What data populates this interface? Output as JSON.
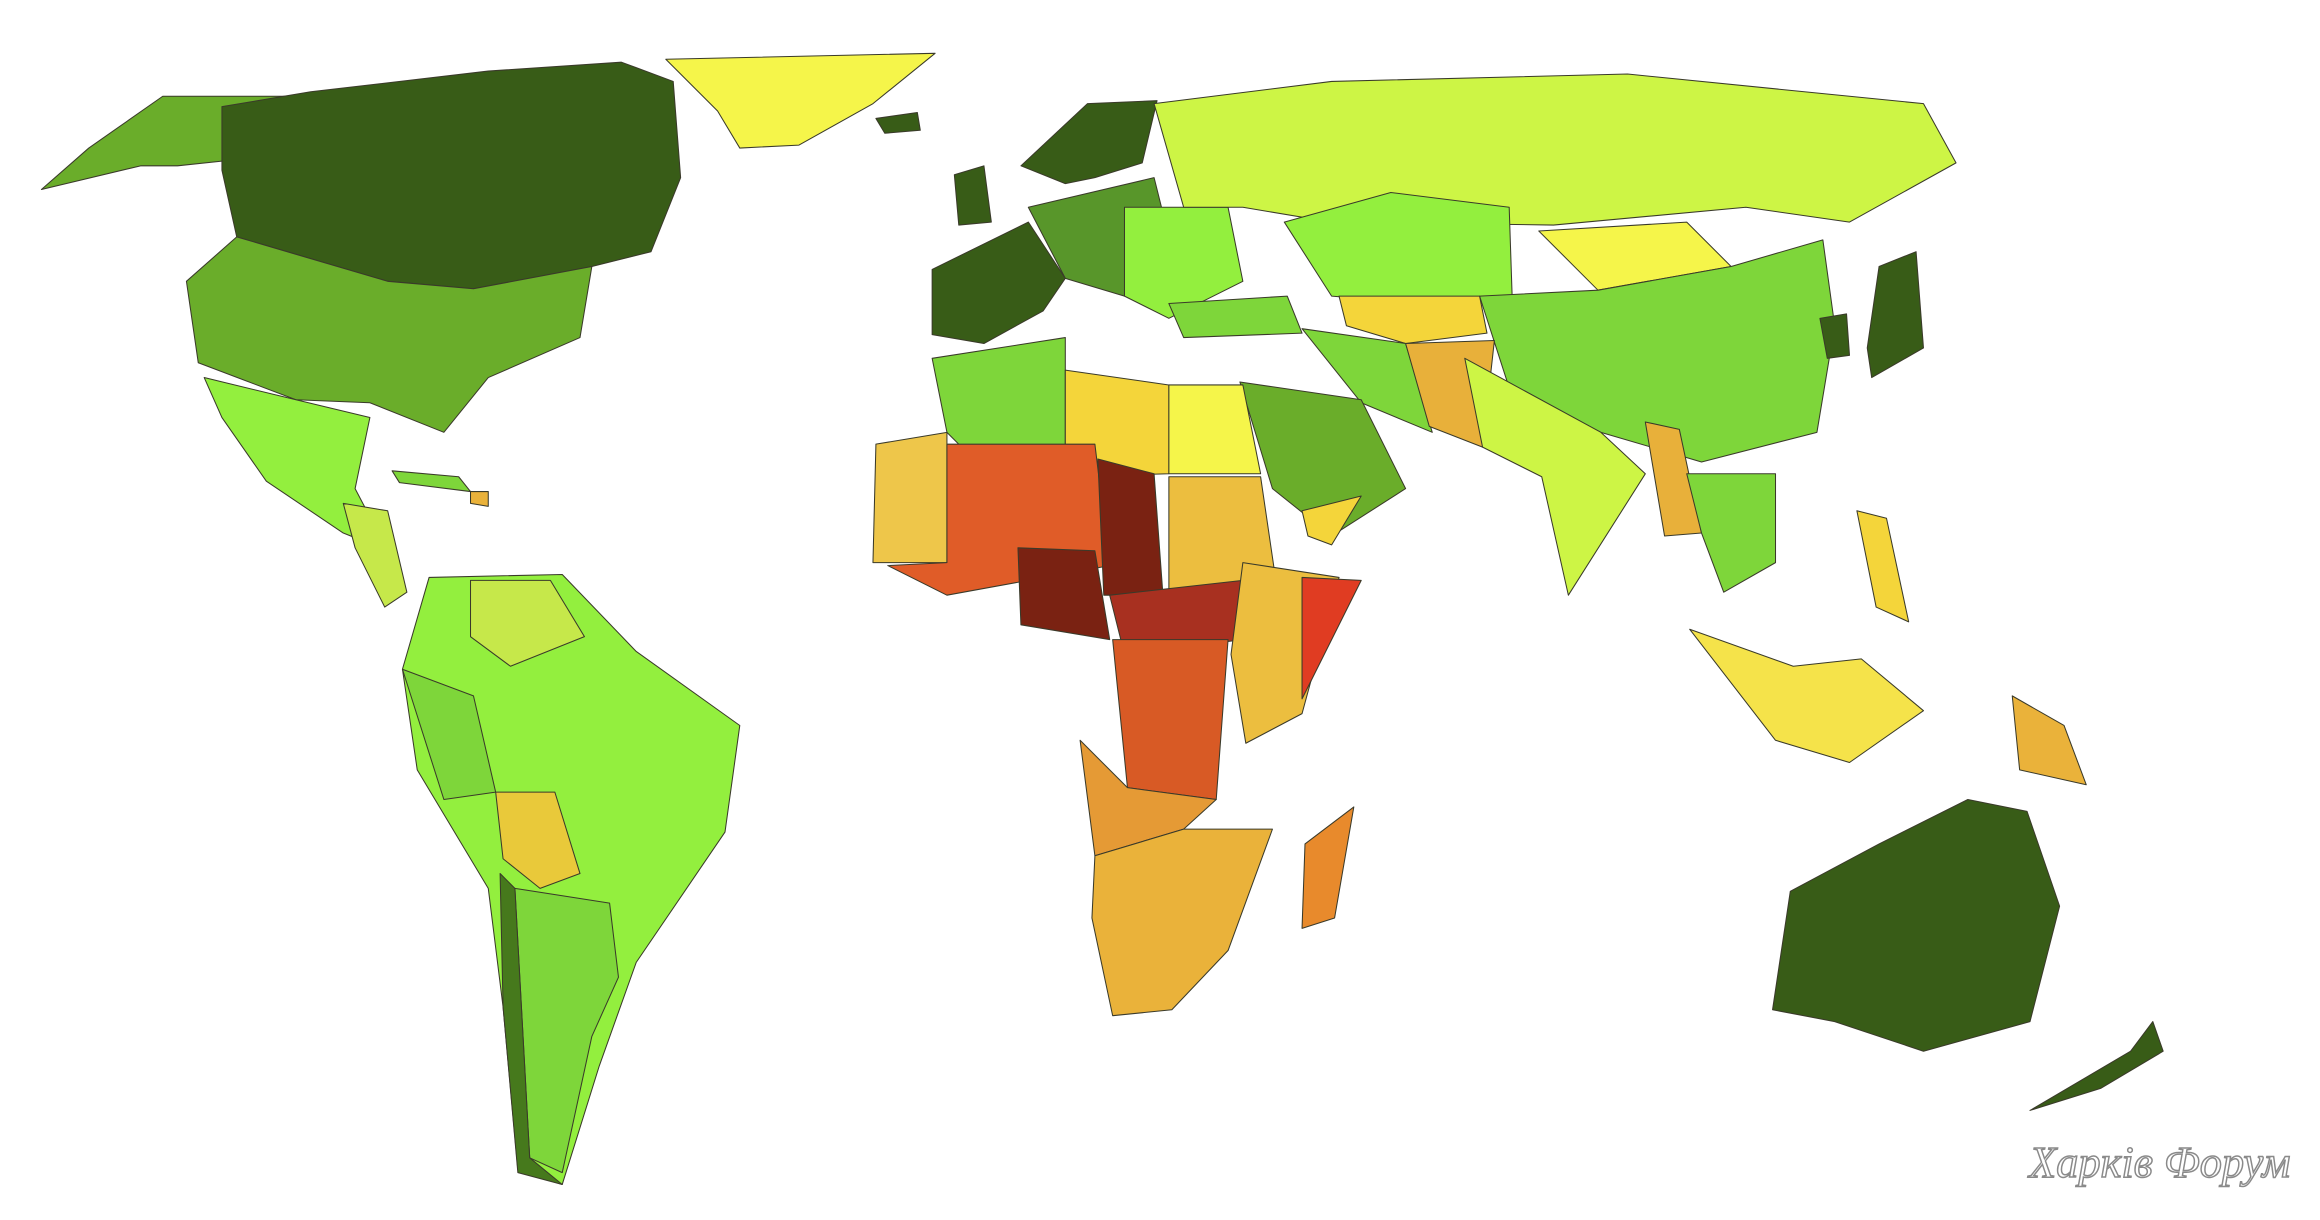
{
  "watermark": "Харків Форум"
}
